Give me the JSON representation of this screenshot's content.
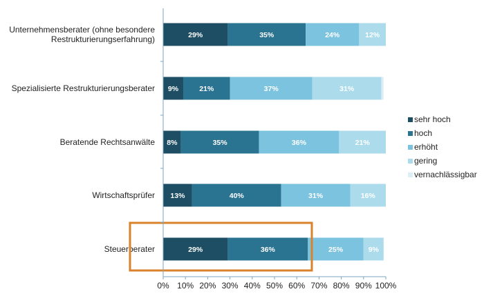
{
  "chart_data": {
    "type": "bar",
    "orientation": "horizontal",
    "stacked": true,
    "categories": [
      [
        "Unternehmensberater (ohne besondere",
        "Restrukturierungserfahrung)"
      ],
      [
        "Spezialisierte Restrukturierungsberater"
      ],
      [
        "Beratende Rechtsanwälte"
      ],
      [
        "Wirtschaftsprüfer"
      ],
      [
        "Steuerberater"
      ]
    ],
    "series": [
      {
        "name": "sehr hoch",
        "color": "#1d4e63",
        "values": [
          29,
          9,
          8,
          13,
          29
        ],
        "labels": [
          "29%",
          "9%",
          "8%",
          "13%",
          "29%"
        ]
      },
      {
        "name": "hoch",
        "color": "#2a7391",
        "values": [
          35,
          21,
          35,
          40,
          36
        ],
        "labels": [
          "35%",
          "21%",
          "35%",
          "40%",
          "36%"
        ]
      },
      {
        "name": "erhöht",
        "color": "#7cc3e0",
        "values": [
          24,
          37,
          36,
          31,
          25
        ],
        "labels": [
          "24%",
          "37%",
          "36%",
          "31%",
          "25%"
        ]
      },
      {
        "name": "gering",
        "color": "#acdbec",
        "values": [
          12,
          31,
          21,
          16,
          9
        ],
        "labels": [
          "12%",
          "31%",
          "21%",
          "16%",
          "9%"
        ]
      },
      {
        "name": "vernachlässigbar",
        "color": "#ddeff6",
        "values": [
          0,
          1,
          0,
          0,
          0
        ],
        "labels": [
          "",
          "",
          "",
          "",
          ""
        ]
      }
    ],
    "xlim": [
      0,
      100
    ],
    "xticks": [
      "0%",
      "10%",
      "20%",
      "30%",
      "40%",
      "50%",
      "60%",
      "70%",
      "80%",
      "90%",
      "100%"
    ],
    "legend_position": "right",
    "highlight": {
      "category_index": 4,
      "series_from": 0,
      "series_to": 1,
      "color": "#d9822b"
    },
    "grid": false
  }
}
